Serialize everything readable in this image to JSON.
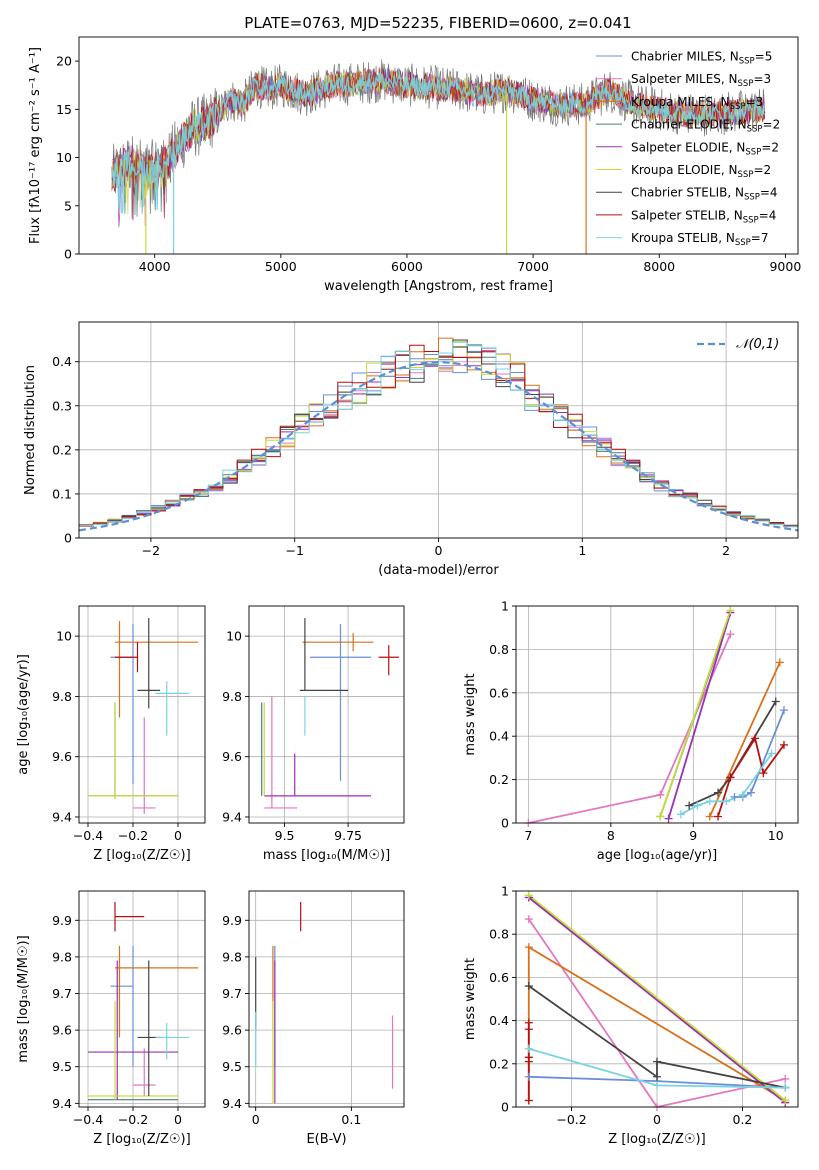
{
  "figure_title": "PLATE=0763, MJD=52235, FIBERID=0600, z=0.041",
  "series": [
    {
      "name": "Chabrier MILES",
      "nssp": "5",
      "color": "#6a8fd8"
    },
    {
      "name": "Salpeter MILES",
      "nssp": "3",
      "color": "#e377c2"
    },
    {
      "name": "Kroupa MILES",
      "nssp": "3",
      "color": "#d9711c"
    },
    {
      "name": "Chabrier ELODIE",
      "nssp": "2",
      "color": "#4a7d7d"
    },
    {
      "name": "Salpeter ELODIE",
      "nssp": "2",
      "color": "#9b30b0"
    },
    {
      "name": "Kroupa ELODIE",
      "nssp": "2",
      "color": "#c8dc3c"
    },
    {
      "name": "Chabrier STELIB",
      "nssp": "4",
      "color": "#444444"
    },
    {
      "name": "Salpeter STELIB",
      "nssp": "4",
      "color": "#b80f0f"
    },
    {
      "name": "Kroupa STELIB",
      "nssp": "7",
      "color": "#78d4e0"
    }
  ],
  "chart_data": [
    {
      "id": "spectrum",
      "type": "line",
      "xlabel": "wavelength [Angstrom, rest frame]",
      "ylabel": "Flux [fλ10⁻¹⁷ erg cm⁻² s⁻¹ A⁻¹]",
      "xlim": [
        3400,
        9100
      ],
      "ylim": [
        0,
        22.5
      ],
      "xticks": [
        4000,
        5000,
        6000,
        7000,
        8000,
        9000
      ],
      "yticks": [
        0,
        5,
        10,
        15,
        20
      ],
      "envelope_x": [
        3650,
        3800,
        3950,
        4100,
        4200,
        4300,
        4400,
        4500,
        4600,
        4700,
        4800,
        4900,
        5000,
        5100,
        5200,
        5400,
        5600,
        5800,
        6000,
        6200,
        6400,
        6600,
        6800,
        7000,
        7200,
        7400,
        7600,
        7800,
        8000,
        8200,
        8400,
        8600,
        8800
      ],
      "envelope_y": [
        9.5,
        11,
        10,
        11,
        13,
        14.5,
        15,
        16,
        17.5,
        17,
        19,
        18.5,
        19,
        18.5,
        18,
        19,
        19.2,
        19.5,
        19,
        18.8,
        18.5,
        18,
        18.5,
        17.5,
        17,
        17,
        18.5,
        17,
        16.5,
        16,
        16,
        16.2,
        16.5
      ],
      "legend_position": "upper-right"
    },
    {
      "id": "residuals",
      "type": "line",
      "xlabel": "(data-model)/error",
      "ylabel": "Normed distribution",
      "xlim": [
        -2.5,
        2.5
      ],
      "ylim": [
        0,
        0.49
      ],
      "xticks": [
        -2,
        -1,
        0,
        1,
        2
      ],
      "yticks": [
        0.0,
        0.1,
        0.2,
        0.3,
        0.4
      ],
      "reference_label": "𝒩(0,1)",
      "reference_color": "#5b8fd8",
      "grid": true,
      "legend_position": "upper-right"
    },
    {
      "id": "age_vs_Z",
      "type": "scatter",
      "xlabel": "Z [log₁₀(Z/Z☉)]",
      "ylabel": "age  [log₁₀(age/yr)]",
      "xlim": [
        -0.44,
        0.12
      ],
      "ylim": [
        9.38,
        10.1
      ],
      "xticks": [
        -0.4,
        -0.2,
        0.0
      ],
      "yticks": [
        9.4,
        9.6,
        9.8,
        10.0
      ],
      "grid": true,
      "points": [
        {
          "x": -0.2,
          "xerr": [
            0.1,
            0.0
          ],
          "y": 9.93,
          "yerr": [
            0.42,
            0.11
          ],
          "series": 0
        },
        {
          "x": -0.15,
          "xerr": [
            0.05,
            0.05
          ],
          "y": 9.43,
          "yerr": [
            0.02,
            0.3
          ],
          "series": 1
        },
        {
          "x": -0.26,
          "xerr": [
            0.02,
            0.35
          ],
          "y": 9.98,
          "yerr": [
            0.25,
            0.07
          ],
          "series": 2
        },
        {
          "x": -0.28,
          "xerr": [
            0.12,
            0.28
          ],
          "y": 9.47,
          "yerr": [
            0.01,
            0.31
          ],
          "series": 3
        },
        {
          "x": -0.05,
          "xerr": [
            0.0,
            0.0
          ],
          "y": 9.47,
          "yerr": [
            0.0,
            0.0
          ],
          "series": 4
        },
        {
          "x": -0.28,
          "xerr": [
            0.12,
            0.28
          ],
          "y": 9.47,
          "yerr": [
            0.01,
            0.31
          ],
          "series": 5
        },
        {
          "x": -0.13,
          "xerr": [
            0.05,
            0.05
          ],
          "y": 9.82,
          "yerr": [
            0.06,
            0.24
          ],
          "series": 6
        },
        {
          "x": -0.18,
          "xerr": [
            0.1,
            0.0
          ],
          "y": 9.93,
          "yerr": [
            0.05,
            0.05
          ],
          "series": 7
        },
        {
          "x": -0.05,
          "xerr": [
            0.05,
            0.1
          ],
          "y": 9.81,
          "yerr": [
            0.14,
            0.04
          ],
          "series": 8
        }
      ]
    },
    {
      "id": "age_vs_mass",
      "type": "scatter",
      "xlabel": "mass [log₁₀(M/M☉)]",
      "ylabel": "",
      "xlim": [
        9.36,
        9.97
      ],
      "ylim": [
        9.38,
        10.1
      ],
      "xticks": [
        9.5,
        9.75
      ],
      "yticks": [
        9.4,
        9.6,
        9.8,
        10.0
      ],
      "grid": true,
      "points": [
        {
          "x": 9.72,
          "xerr": [
            0.12,
            0.12
          ],
          "y": 9.93,
          "yerr": [
            0.41,
            0.11
          ],
          "series": 0
        },
        {
          "x": 9.45,
          "xerr": [
            0.03,
            0.1
          ],
          "y": 9.43,
          "yerr": [
            0.0,
            0.37
          ],
          "series": 1
        },
        {
          "x": 9.77,
          "xerr": [
            0.2,
            0.08
          ],
          "y": 9.98,
          "yerr": [
            0.03,
            0.03
          ],
          "series": 2
        },
        {
          "x": 9.41,
          "xerr": [
            0.0,
            0.0
          ],
          "y": 9.47,
          "yerr": [
            0.0,
            0.31
          ],
          "series": 3
        },
        {
          "x": 9.54,
          "xerr": [
            0.12,
            0.3
          ],
          "y": 9.47,
          "yerr": [
            0.0,
            0.14
          ],
          "series": 4
        },
        {
          "x": 9.42,
          "xerr": [
            0.0,
            0.0
          ],
          "y": 9.47,
          "yerr": [
            0.0,
            0.31
          ],
          "series": 5
        },
        {
          "x": 9.58,
          "xerr": [
            0.02,
            0.17
          ],
          "y": 9.82,
          "yerr": [
            0.0,
            0.24
          ],
          "series": 6
        },
        {
          "x": 9.91,
          "xerr": [
            0.04,
            0.04
          ],
          "y": 9.93,
          "yerr": [
            0.06,
            0.04
          ],
          "series": 7
        },
        {
          "x": 9.58,
          "xerr": [
            0.0,
            0.0
          ],
          "y": 9.8,
          "yerr": [
            0.13,
            0.0
          ],
          "series": 8
        }
      ]
    },
    {
      "id": "mass_weight_vs_age",
      "type": "line",
      "xlabel": "age  [log₁₀(age/yr)]",
      "ylabel": "mass weight",
      "xlim": [
        6.85,
        10.27
      ],
      "ylim": [
        0,
        1.0
      ],
      "xticks": [
        7,
        8,
        9,
        10
      ],
      "yticks": [
        0.0,
        0.2,
        0.4,
        0.6,
        0.8,
        1.0
      ],
      "grid": true,
      "series": [
        {
          "series": 0,
          "x": [
            9.5,
            9.6,
            9.7,
            10.1
          ],
          "y": [
            0.12,
            0.12,
            0.14,
            0.52
          ]
        },
        {
          "series": 1,
          "x": [
            7.0,
            8.6,
            9.45
          ],
          "y": [
            0.0,
            0.13,
            0.87
          ]
        },
        {
          "series": 2,
          "x": [
            9.2,
            10.05
          ],
          "y": [
            0.03,
            0.74
          ]
        },
        {
          "series": 3,
          "x": [
            8.6,
            9.45
          ],
          "y": [
            0.03,
            0.97
          ]
        },
        {
          "series": 4,
          "x": [
            8.7,
            9.45
          ],
          "y": [
            0.02,
            0.97
          ]
        },
        {
          "series": 5,
          "x": [
            8.6,
            9.45
          ],
          "y": [
            0.03,
            0.98
          ]
        },
        {
          "series": 6,
          "x": [
            8.95,
            9.3,
            9.45,
            10.0
          ],
          "y": [
            0.08,
            0.14,
            0.21,
            0.56
          ]
        },
        {
          "series": 7,
          "x": [
            9.3,
            9.45,
            9.75,
            9.85,
            10.1
          ],
          "y": [
            0.03,
            0.21,
            0.39,
            0.23,
            0.36
          ]
        },
        {
          "series": 8,
          "x": [
            8.85,
            9.05,
            9.2,
            9.4,
            9.6,
            9.95
          ],
          "y": [
            0.04,
            0.08,
            0.1,
            0.1,
            0.13,
            0.32
          ]
        }
      ]
    },
    {
      "id": "mass_vs_Z",
      "type": "scatter",
      "xlabel": "Z [log₁₀(Z/Z☉)]",
      "ylabel": "mass [log₁₀(M/M☉)]",
      "xlim": [
        -0.44,
        0.12
      ],
      "ylim": [
        9.39,
        9.98
      ],
      "xticks": [
        -0.4,
        -0.2,
        0.0
      ],
      "yticks": [
        9.4,
        9.5,
        9.6,
        9.7,
        9.8,
        9.9
      ],
      "grid": true,
      "points": [
        {
          "x": -0.2,
          "xerr": [
            0.1,
            0.0
          ],
          "y": 9.72,
          "yerr": [
            0.22,
            0.11
          ],
          "series": 0
        },
        {
          "x": -0.15,
          "xerr": [
            0.05,
            0.05
          ],
          "y": 9.45,
          "yerr": [
            0.03,
            0.1
          ],
          "series": 1
        },
        {
          "x": -0.26,
          "xerr": [
            0.02,
            0.35
          ],
          "y": 9.77,
          "yerr": [
            0.19,
            0.06
          ],
          "series": 2
        },
        {
          "x": -0.28,
          "xerr": [
            0.12,
            0.28
          ],
          "y": 9.41,
          "yerr": [
            0.0,
            0.0
          ],
          "series": 3
        },
        {
          "x": -0.27,
          "xerr": [
            0.13,
            0.27
          ],
          "y": 9.54,
          "yerr": [
            0.13,
            0.25
          ],
          "series": 4
        },
        {
          "x": -0.28,
          "xerr": [
            0.12,
            0.28
          ],
          "y": 9.42,
          "yerr": [
            0.01,
            0.26
          ],
          "series": 5
        },
        {
          "x": -0.13,
          "xerr": [
            0.05,
            0.05
          ],
          "y": 9.58,
          "yerr": [
            0.16,
            0.21
          ],
          "series": 6
        },
        {
          "x": -0.28,
          "xerr": [
            0.0,
            0.13
          ],
          "y": 9.91,
          "yerr": [
            0.04,
            0.04
          ],
          "series": 7
        },
        {
          "x": -0.05,
          "xerr": [
            0.05,
            0.1
          ],
          "y": 9.58,
          "yerr": [
            0.06,
            0.04
          ],
          "series": 8
        }
      ]
    },
    {
      "id": "mass_vs_EBV",
      "type": "scatter",
      "xlabel": "E(B-V)",
      "ylabel": "",
      "xlim": [
        -0.007,
        0.155
      ],
      "ylim": [
        9.39,
        9.98
      ],
      "xticks": [
        0.0,
        0.1
      ],
      "yticks": [
        9.4,
        9.5,
        9.6,
        9.7,
        9.8,
        9.9
      ],
      "grid": true,
      "points": [
        {
          "x": 0.02,
          "y": 9.72,
          "yerr": [
            0.22,
            0.11
          ],
          "series": 0
        },
        {
          "x": 0.143,
          "y": 9.55,
          "yerr": [
            0.11,
            0.09
          ],
          "series": 1
        },
        {
          "x": 0.018,
          "y": 9.77,
          "yerr": [
            0.17,
            0.06
          ],
          "series": 2
        },
        {
          "x": 0.0,
          "y": 9.41,
          "yerr": [
            0.0,
            0.0
          ],
          "series": 3
        },
        {
          "x": 0.02,
          "y": 9.54,
          "yerr": [
            0.14,
            0.25
          ],
          "series": 4
        },
        {
          "x": 0.018,
          "y": 9.42,
          "yerr": [
            0.02,
            0.26
          ],
          "series": 5
        },
        {
          "x": 0.0,
          "y": 9.7,
          "yerr": [
            0.1,
            0.1
          ],
          "series": 6
        },
        {
          "x": 0.047,
          "y": 9.91,
          "yerr": [
            0.04,
            0.04
          ],
          "series": 7
        },
        {
          "x": 0.0,
          "y": 9.58,
          "yerr": [
            0.08,
            0.07
          ],
          "series": 8
        }
      ]
    },
    {
      "id": "mass_weight_vs_Z",
      "type": "line",
      "xlabel": "Z [log₁₀(Z/Z☉)]",
      "ylabel": "mass weight",
      "xlim": [
        -0.33,
        0.33
      ],
      "ylim": [
        0,
        1.0
      ],
      "xticks": [
        -0.2,
        0.0,
        0.2
      ],
      "yticks": [
        0.0,
        0.2,
        0.4,
        0.6,
        0.8,
        1.0
      ],
      "grid": true,
      "series": [
        {
          "series": 0,
          "x": [
            -0.3,
            0.0,
            0.3
          ],
          "y": [
            0.14,
            0.12,
            0.09
          ]
        },
        {
          "series": 1,
          "x": [
            -0.3,
            0.0,
            0.3
          ],
          "y": [
            0.87,
            0.0,
            0.13
          ]
        },
        {
          "series": 2,
          "x": [
            -0.3,
            -0.3,
            0.3
          ],
          "y": [
            0.03,
            0.74,
            0.03
          ]
        },
        {
          "series": 3,
          "x": [
            -0.3,
            0.3
          ],
          "y": [
            0.97,
            0.03
          ]
        },
        {
          "series": 4,
          "x": [
            -0.3,
            0.3
          ],
          "y": [
            0.97,
            0.02
          ]
        },
        {
          "series": 5,
          "x": [
            -0.3,
            0.3
          ],
          "y": [
            0.98,
            0.03
          ]
        },
        {
          "series": 6,
          "x": [
            -0.3,
            0.0,
            0.0,
            0.3
          ],
          "y": [
            0.56,
            0.14,
            0.21,
            0.09
          ]
        },
        {
          "series": 7,
          "x": [
            -0.3,
            -0.3,
            -0.3,
            -0.3,
            -0.3
          ],
          "y": [
            0.03,
            0.21,
            0.39,
            0.23,
            0.36
          ]
        },
        {
          "series": 8,
          "x": [
            -0.3,
            0.0,
            0.3
          ],
          "y": [
            0.27,
            0.1,
            0.09
          ]
        }
      ]
    }
  ]
}
